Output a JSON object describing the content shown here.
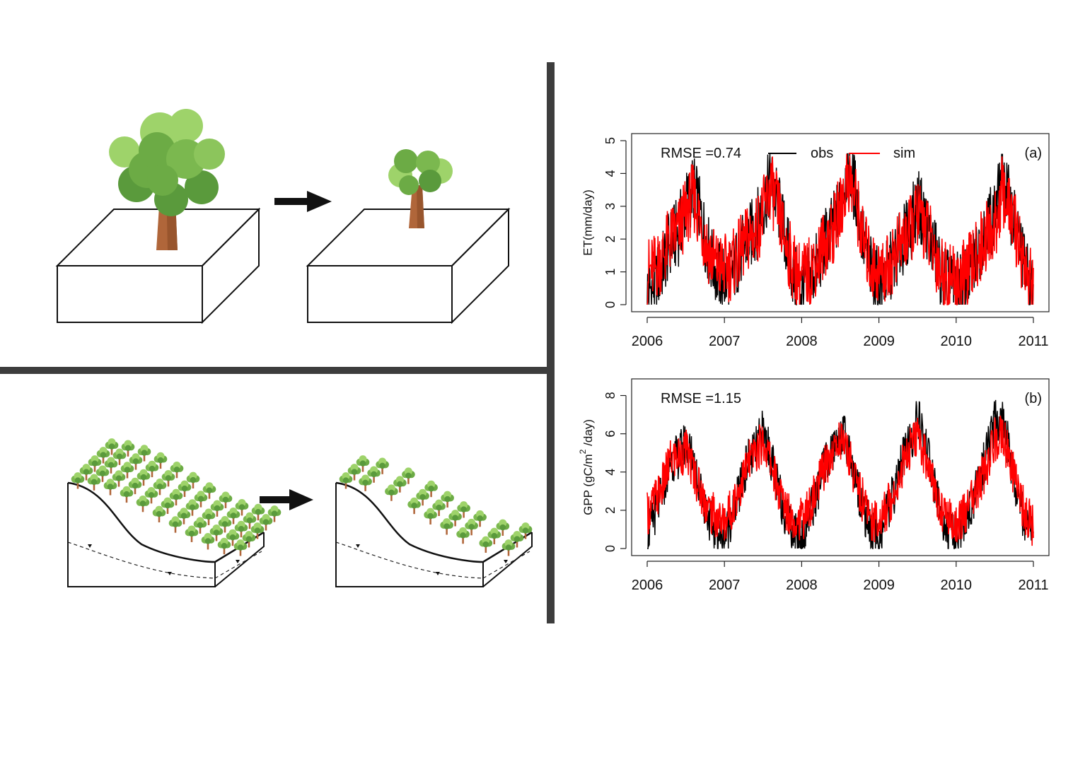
{
  "colors": {
    "obs": "#000000",
    "sim": "#ff0000",
    "divider": "#3d3d3d",
    "leaf_light": "#9ed36a",
    "leaf_mid": "#7bb84f",
    "leaf_dark": "#5a9a3c",
    "trunk": "#b0663a"
  },
  "icons": {
    "big_tree": "deciduous-tree-icon",
    "small_tree": "pruned-tree-icon",
    "arrow": "right-arrow-icon",
    "dense_hillslope": "dense-forest-hillslope-icon",
    "thinned_hillslope": "thinned-forest-hillslope-icon"
  },
  "chart_data": [
    {
      "id": "a",
      "type": "line",
      "panel_label": "(a)",
      "ylabel": "ET(mm/day)",
      "xlabel": "",
      "annotation": "RMSE =0.74",
      "legend": {
        "placement": "top",
        "entries": [
          "obs",
          "sim"
        ]
      },
      "xlim": [
        2006,
        2011
      ],
      "ylim": [
        0,
        5
      ],
      "xticks": [
        "2006",
        "2007",
        "2008",
        "2009",
        "2010",
        "2011"
      ],
      "yticks": [
        "0",
        "1",
        "2",
        "3",
        "4",
        "5"
      ],
      "grid": false,
      "series": [
        {
          "name": "obs",
          "x": [
            2006.0,
            2006.1,
            2006.2,
            2006.3,
            2006.4,
            2006.5,
            2006.6,
            2006.7,
            2006.8,
            2006.9,
            2007.0,
            2007.1,
            2007.2,
            2007.3,
            2007.4,
            2007.5,
            2007.6,
            2007.7,
            2007.8,
            2007.9,
            2008.0,
            2008.1,
            2008.2,
            2008.3,
            2008.4,
            2008.5,
            2008.6,
            2008.7,
            2008.8,
            2008.9,
            2009.0,
            2009.1,
            2009.2,
            2009.3,
            2009.4,
            2009.5,
            2009.6,
            2009.7,
            2009.8,
            2009.9,
            2010.0,
            2010.1,
            2010.2,
            2010.3,
            2010.4,
            2010.5,
            2010.6,
            2010.7,
            2010.8,
            2010.9,
            2011.0
          ],
          "values": [
            0.4,
            0.6,
            1.2,
            1.9,
            2.2,
            3.0,
            3.6,
            2.6,
            1.6,
            1.0,
            0.7,
            1.0,
            1.5,
            2.0,
            2.3,
            3.0,
            3.8,
            3.0,
            1.9,
            0.8,
            0.4,
            0.8,
            1.2,
            1.9,
            2.3,
            3.0,
            4.3,
            3.4,
            1.9,
            1.0,
            0.6,
            0.9,
            1.4,
            1.9,
            2.3,
            3.1,
            2.6,
            1.8,
            1.0,
            0.6,
            0.5,
            0.7,
            1.1,
            1.8,
            2.5,
            2.7,
            3.9,
            3.0,
            2.1,
            1.0,
            0.3
          ]
        },
        {
          "name": "sim",
          "x": [
            2006.0,
            2006.1,
            2006.2,
            2006.3,
            2006.4,
            2006.5,
            2006.6,
            2006.7,
            2006.8,
            2006.9,
            2007.0,
            2007.1,
            2007.2,
            2007.3,
            2007.4,
            2007.5,
            2007.6,
            2007.7,
            2007.8,
            2007.9,
            2008.0,
            2008.1,
            2008.2,
            2008.3,
            2008.4,
            2008.5,
            2008.6,
            2008.7,
            2008.8,
            2008.9,
            2009.0,
            2009.1,
            2009.2,
            2009.3,
            2009.4,
            2009.5,
            2009.6,
            2009.7,
            2009.8,
            2009.9,
            2010.0,
            2010.1,
            2010.2,
            2010.3,
            2010.4,
            2010.5,
            2010.6,
            2010.7,
            2010.8,
            2010.9,
            2011.0
          ],
          "values": [
            1.0,
            1.1,
            1.5,
            2.0,
            2.2,
            2.8,
            3.3,
            2.4,
            1.6,
            1.2,
            1.1,
            1.2,
            1.6,
            2.0,
            2.2,
            2.8,
            3.6,
            2.8,
            1.8,
            1.1,
            0.8,
            1.0,
            1.4,
            1.9,
            2.2,
            2.9,
            3.9,
            3.2,
            1.9,
            1.2,
            1.0,
            1.1,
            1.5,
            1.9,
            2.2,
            2.8,
            2.4,
            1.7,
            1.1,
            0.8,
            0.7,
            0.9,
            1.2,
            1.7,
            2.1,
            2.3,
            3.5,
            2.8,
            2.0,
            1.1,
            0.4
          ]
        }
      ]
    },
    {
      "id": "b",
      "type": "line",
      "panel_label": "(b)",
      "ylabel_parts": [
        "GPP (gC/m",
        "2",
        " /day)"
      ],
      "xlabel": "",
      "annotation": "RMSE =1.15",
      "legend": null,
      "xlim": [
        2006,
        2011
      ],
      "ylim": [
        0,
        8.5
      ],
      "xticks": [
        "2006",
        "2007",
        "2008",
        "2009",
        "2010",
        "2011"
      ],
      "yticks": [
        "0",
        "2",
        "4",
        "6",
        "8"
      ],
      "grid": false,
      "series": [
        {
          "name": "obs",
          "x": [
            2006.0,
            2006.1,
            2006.2,
            2006.3,
            2006.4,
            2006.5,
            2006.6,
            2006.7,
            2006.8,
            2006.9,
            2007.0,
            2007.1,
            2007.2,
            2007.3,
            2007.4,
            2007.5,
            2007.6,
            2007.7,
            2007.8,
            2007.9,
            2008.0,
            2008.1,
            2008.2,
            2008.3,
            2008.4,
            2008.5,
            2008.6,
            2008.7,
            2008.8,
            2008.9,
            2009.0,
            2009.1,
            2009.2,
            2009.3,
            2009.4,
            2009.5,
            2009.6,
            2009.7,
            2009.8,
            2009.9,
            2010.0,
            2010.1,
            2010.2,
            2010.3,
            2010.4,
            2010.5,
            2010.6,
            2010.7,
            2010.8,
            2010.9,
            2011.0
          ],
          "values": [
            0.6,
            1.8,
            3.0,
            4.6,
            4.8,
            5.6,
            4.6,
            2.9,
            1.6,
            0.8,
            0.5,
            1.8,
            3.0,
            4.6,
            5.1,
            6.2,
            4.8,
            3.0,
            1.7,
            0.9,
            0.6,
            1.8,
            2.9,
            4.4,
            5.0,
            6.2,
            5.4,
            3.6,
            2.0,
            0.9,
            0.6,
            1.8,
            3.0,
            4.6,
            5.4,
            6.8,
            5.5,
            3.6,
            1.8,
            0.8,
            0.5,
            1.2,
            2.2,
            3.6,
            5.0,
            6.6,
            6.9,
            4.8,
            2.7,
            1.3,
            0.6
          ]
        },
        {
          "name": "sim",
          "x": [
            2006.0,
            2006.1,
            2006.2,
            2006.3,
            2006.4,
            2006.5,
            2006.6,
            2006.7,
            2006.8,
            2006.9,
            2007.0,
            2007.1,
            2007.2,
            2007.3,
            2007.4,
            2007.5,
            2007.6,
            2007.7,
            2007.8,
            2007.9,
            2008.0,
            2008.1,
            2008.2,
            2008.3,
            2008.4,
            2008.5,
            2008.6,
            2008.7,
            2008.8,
            2008.9,
            2009.0,
            2009.1,
            2009.2,
            2009.3,
            2009.4,
            2009.5,
            2009.6,
            2009.7,
            2009.8,
            2009.9,
            2010.0,
            2010.1,
            2010.2,
            2010.3,
            2010.4,
            2010.5,
            2010.6,
            2010.7,
            2010.8,
            2010.9,
            2011.0
          ],
          "values": [
            1.8,
            2.5,
            3.3,
            4.6,
            4.8,
            5.1,
            4.1,
            2.9,
            2.0,
            1.6,
            1.4,
            2.2,
            3.2,
            4.4,
            5.0,
            5.6,
            4.6,
            3.0,
            2.1,
            1.6,
            1.5,
            2.1,
            3.1,
            4.3,
            5.0,
            5.8,
            5.0,
            3.6,
            2.4,
            1.6,
            1.4,
            2.1,
            3.0,
            4.3,
            5.2,
            5.8,
            4.9,
            3.4,
            2.1,
            1.6,
            1.3,
            1.8,
            2.5,
            3.3,
            4.3,
            5.7,
            6.1,
            4.5,
            2.9,
            1.8,
            1.2
          ]
        }
      ]
    }
  ]
}
